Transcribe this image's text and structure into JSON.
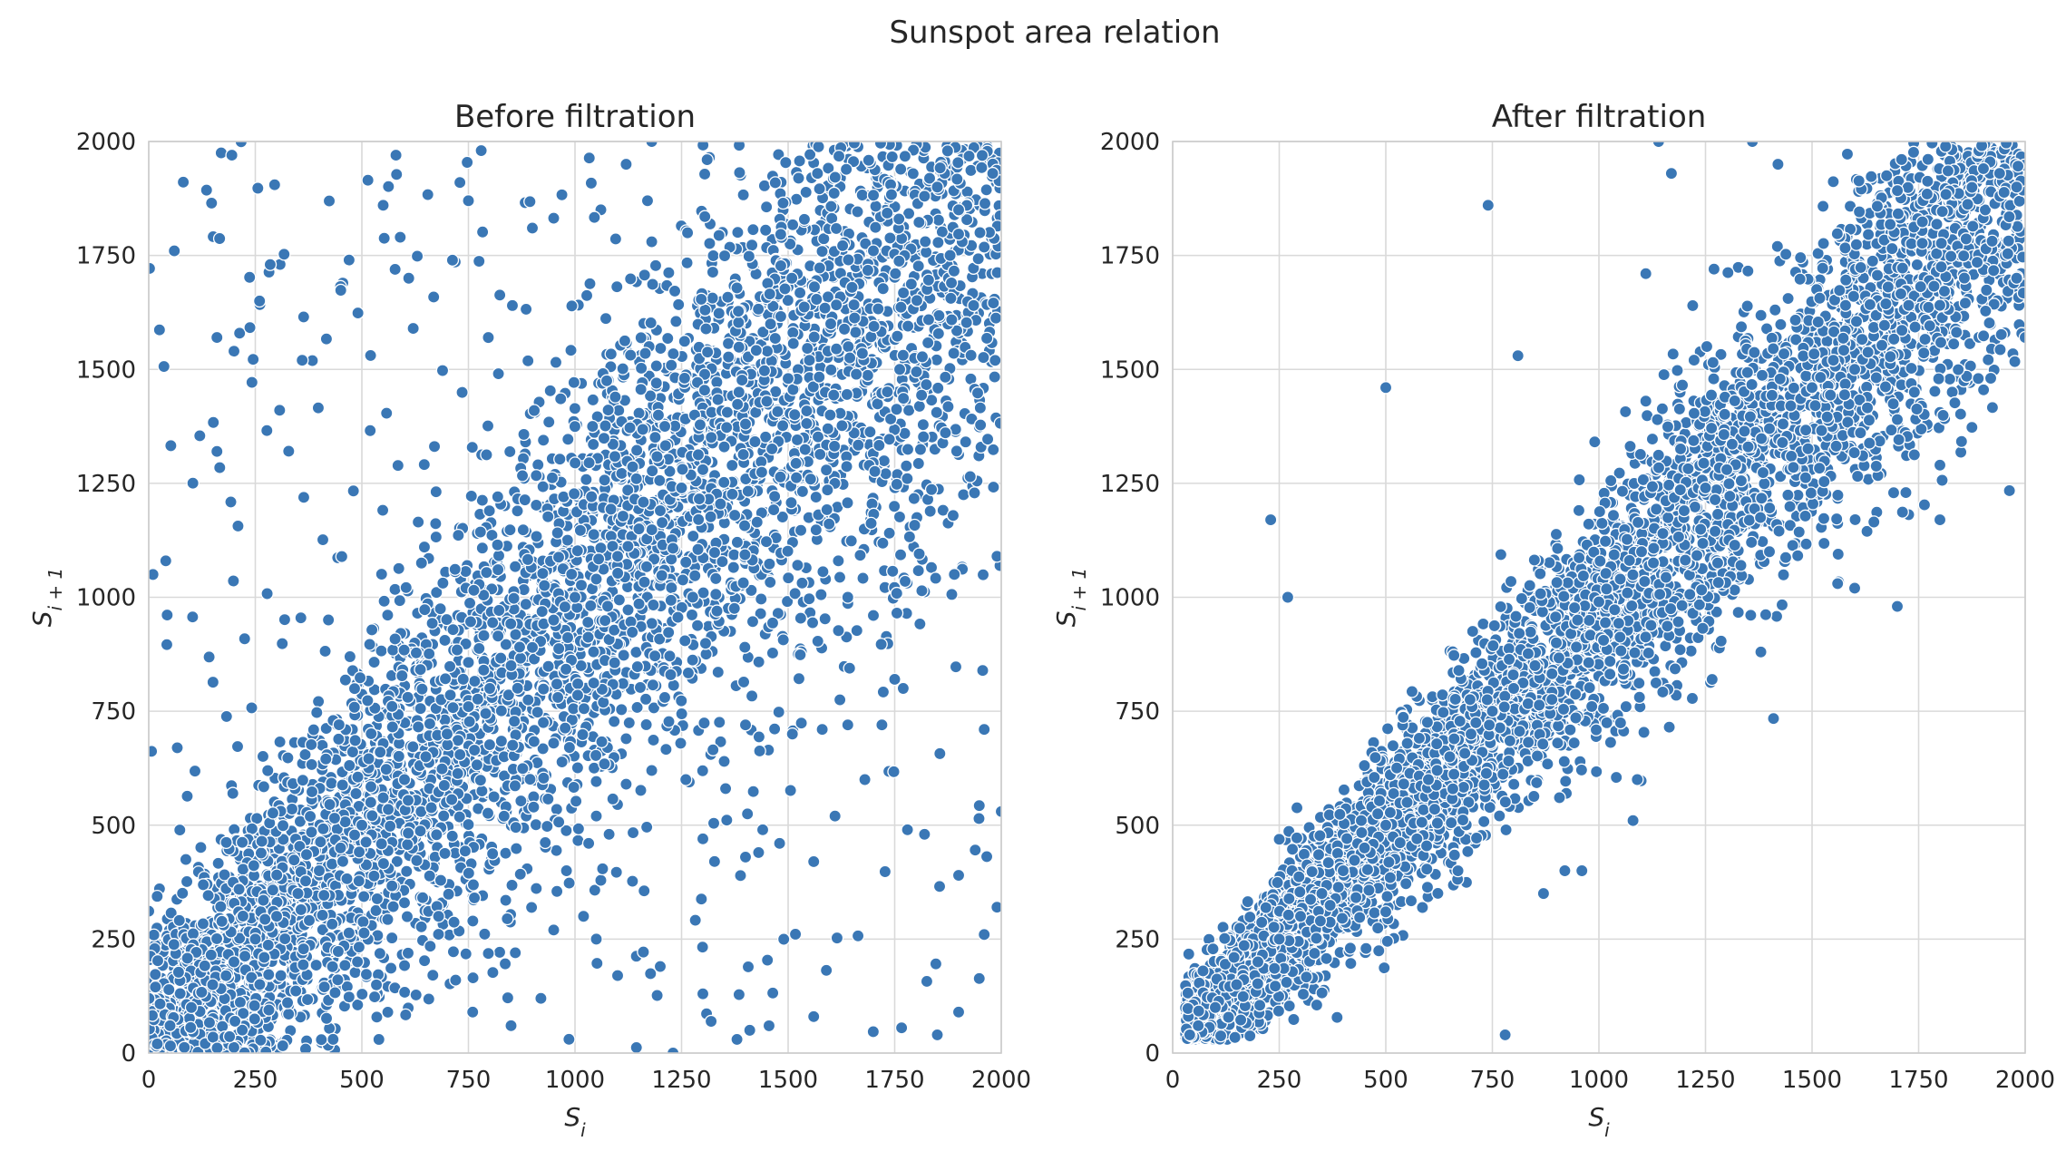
{
  "figure_title": "Sunspot area relation",
  "point_color": "#3a77b5",
  "chart_data": [
    {
      "type": "scatter",
      "title": "Before filtration",
      "xlabel": "S_i",
      "ylabel": "S_{i+1}",
      "xlim": [
        0,
        2000
      ],
      "ylim": [
        0,
        2000
      ],
      "xticks": [
        0,
        250,
        500,
        750,
        1000,
        1250,
        1500,
        1750,
        2000
      ],
      "yticks": [
        0,
        250,
        500,
        750,
        1000,
        1250,
        1500,
        1750,
        2000
      ],
      "grid": true,
      "generated_points_note": "dense scatter along the diagonal with wide spread; representative points below",
      "points": [
        [
          60,
          1760
        ],
        [
          170,
          1975
        ],
        [
          195,
          1970
        ],
        [
          285,
          1730
        ],
        [
          260,
          1650
        ],
        [
          160,
          1570
        ],
        [
          200,
          1540
        ],
        [
          360,
          1520
        ],
        [
          10,
          1050
        ],
        [
          40,
          1080
        ],
        [
          160,
          1320
        ],
        [
          550,
          1860
        ],
        [
          580,
          1970
        ],
        [
          590,
          1790
        ],
        [
          470,
          1740
        ],
        [
          610,
          1700
        ],
        [
          780,
          1980
        ],
        [
          730,
          1910
        ],
        [
          750,
          1870
        ],
        [
          900,
          1810
        ],
        [
          1180,
          2000
        ],
        [
          1120,
          1950
        ],
        [
          1180,
          1780
        ],
        [
          1310,
          1960
        ],
        [
          1640,
          1000
        ],
        [
          1700,
          960
        ],
        [
          1750,
          820
        ],
        [
          1770,
          800
        ],
        [
          1720,
          720
        ],
        [
          1640,
          720
        ],
        [
          1580,
          710
        ],
        [
          1510,
          700
        ],
        [
          1400,
          720
        ],
        [
          1350,
          640
        ],
        [
          1260,
          600
        ],
        [
          1180,
          620
        ],
        [
          1120,
          590
        ],
        [
          1050,
          520
        ],
        [
          1080,
          480
        ],
        [
          1300,
          470
        ],
        [
          1400,
          430
        ],
        [
          1480,
          460
        ],
        [
          1560,
          420
        ],
        [
          1610,
          520
        ],
        [
          1780,
          490
        ],
        [
          1820,
          480
        ],
        [
          1680,
          600
        ],
        [
          1900,
          390
        ],
        [
          1960,
          710
        ],
        [
          1990,
          1090
        ],
        [
          2000,
          530
        ],
        [
          1990,
          320
        ],
        [
          1960,
          260
        ],
        [
          1850,
          40
        ],
        [
          1900,
          90
        ],
        [
          1560,
          80
        ],
        [
          1410,
          50
        ],
        [
          1380,
          30
        ],
        [
          1230,
          0
        ],
        [
          1300,
          130
        ],
        [
          1200,
          190
        ],
        [
          1100,
          170
        ],
        [
          1050,
          250
        ],
        [
          1020,
          300
        ],
        [
          950,
          270
        ],
        [
          980,
          400
        ],
        [
          920,
          120
        ],
        [
          850,
          60
        ],
        [
          860,
          220
        ],
        [
          760,
          90
        ],
        [
          720,
          160
        ],
        [
          680,
          300
        ],
        [
          1850,
          1900
        ],
        [
          1900,
          1850
        ],
        [
          1950,
          1800
        ],
        [
          1980,
          1930
        ],
        [
          1880,
          1750
        ],
        [
          1820,
          1880
        ],
        [
          1760,
          1830
        ],
        [
          1700,
          1760
        ],
        [
          1650,
          1680
        ],
        [
          1600,
          1600
        ],
        [
          1550,
          1520
        ],
        [
          1500,
          1480
        ],
        [
          1450,
          1430
        ],
        [
          1400,
          1380
        ],
        [
          1350,
          1330
        ],
        [
          1300,
          1280
        ],
        [
          1250,
          1240
        ],
        [
          1200,
          1190
        ],
        [
          1150,
          1150
        ],
        [
          1100,
          1090
        ],
        [
          1050,
          1040
        ],
        [
          1000,
          1000
        ],
        [
          950,
          950
        ],
        [
          900,
          890
        ],
        [
          850,
          850
        ],
        [
          800,
          800
        ],
        [
          750,
          760
        ],
        [
          700,
          700
        ],
        [
          650,
          650
        ],
        [
          600,
          600
        ],
        [
          550,
          560
        ],
        [
          500,
          500
        ],
        [
          450,
          450
        ],
        [
          400,
          400
        ],
        [
          350,
          350
        ],
        [
          300,
          300
        ],
        [
          250,
          250
        ],
        [
          200,
          200
        ],
        [
          150,
          150
        ],
        [
          100,
          100
        ],
        [
          50,
          60
        ],
        [
          20,
          20
        ]
      ]
    },
    {
      "type": "scatter",
      "title": "After filtration",
      "xlabel": "S_i",
      "ylabel": "S_{i+1}",
      "xlim": [
        0,
        2000
      ],
      "ylim": [
        0,
        2000
      ],
      "xticks": [
        0,
        250,
        500,
        750,
        1000,
        1250,
        1500,
        1750,
        2000
      ],
      "yticks": [
        0,
        250,
        500,
        750,
        1000,
        1250,
        1500,
        1750,
        2000
      ],
      "grid": true,
      "points": [
        [
          740,
          1860
        ],
        [
          1140,
          2000
        ],
        [
          1170,
          1930
        ],
        [
          1360,
          2000
        ],
        [
          1420,
          1950
        ],
        [
          1270,
          1720
        ],
        [
          1220,
          1640
        ],
        [
          1110,
          1710
        ],
        [
          810,
          1530
        ],
        [
          500,
          1460
        ],
        [
          230,
          1170
        ],
        [
          270,
          1000
        ],
        [
          780,
          40
        ],
        [
          920,
          400
        ],
        [
          960,
          400
        ],
        [
          870,
          350
        ],
        [
          1080,
          510
        ],
        [
          1090,
          600
        ],
        [
          1700,
          980
        ],
        [
          1800,
          1170
        ],
        [
          1800,
          1290
        ],
        [
          1600,
          1020
        ],
        [
          1560,
          1030
        ],
        [
          1400,
          1100
        ],
        [
          2000,
          1570
        ],
        [
          1980,
          1700
        ],
        [
          1940,
          1930
        ],
        [
          1980,
          1900
        ],
        [
          1890,
          1480
        ],
        [
          1700,
          1390
        ],
        [
          1740,
          1450
        ],
        [
          1600,
          1500
        ],
        [
          1550,
          1520
        ],
        [
          1500,
          1460
        ],
        [
          1450,
          1420
        ],
        [
          1400,
          1370
        ],
        [
          1350,
          1330
        ],
        [
          1300,
          1280
        ],
        [
          1250,
          1240
        ],
        [
          1200,
          1190
        ],
        [
          1150,
          1140
        ],
        [
          1100,
          1100
        ],
        [
          1050,
          1040
        ],
        [
          1000,
          990
        ],
        [
          950,
          950
        ],
        [
          900,
          900
        ],
        [
          850,
          850
        ],
        [
          800,
          800
        ],
        [
          750,
          750
        ],
        [
          700,
          700
        ],
        [
          650,
          650
        ],
        [
          600,
          600
        ],
        [
          550,
          550
        ],
        [
          500,
          500
        ],
        [
          450,
          450
        ],
        [
          400,
          400
        ],
        [
          350,
          350
        ],
        [
          300,
          300
        ],
        [
          250,
          250
        ],
        [
          200,
          200
        ],
        [
          150,
          150
        ],
        [
          100,
          100
        ],
        [
          60,
          60
        ],
        [
          40,
          40
        ]
      ]
    }
  ]
}
